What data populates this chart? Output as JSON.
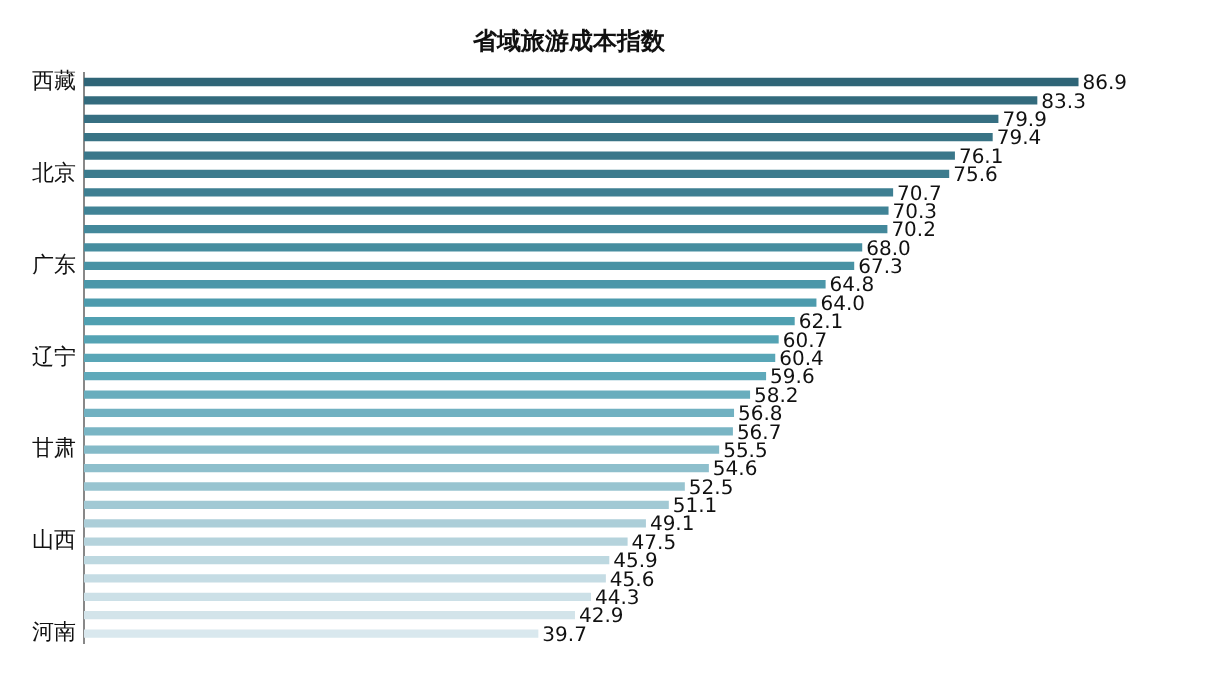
{
  "chart_data": {
    "type": "bar",
    "orientation": "horizontal",
    "title": "省域旅游成本指数",
    "categories": [
      "西藏",
      null,
      null,
      null,
      null,
      "北京",
      null,
      null,
      null,
      null,
      "广东",
      null,
      null,
      null,
      null,
      "辽宁",
      null,
      null,
      null,
      null,
      "甘肃",
      null,
      null,
      null,
      null,
      "山西",
      null,
      null,
      null,
      null,
      "河南"
    ],
    "values": [
      86.9,
      83.3,
      79.9,
      79.4,
      76.1,
      75.6,
      70.7,
      70.3,
      70.2,
      68.0,
      67.3,
      64.8,
      64.0,
      62.1,
      60.7,
      60.4,
      59.6,
      58.2,
      56.8,
      56.7,
      55.5,
      54.6,
      52.5,
      51.1,
      49.1,
      47.5,
      45.9,
      45.6,
      44.3,
      42.9,
      39.7
    ],
    "colors": [
      "#2f6577",
      "#336b7d",
      "#366f82",
      "#387385",
      "#3a778a",
      "#3c7b8d",
      "#3e7f92",
      "#408396",
      "#43889b",
      "#468d9f",
      "#4892a4",
      "#4b97a9",
      "#4d9bad",
      "#50a0b1",
      "#54a3b4",
      "#59a6b7",
      "#5fa9ba",
      "#68adbd",
      "#71b1c1",
      "#7ab5c4",
      "#84bac8",
      "#8ebfcc",
      "#98c4d0",
      "#a2c9d4",
      "#acced8",
      "#b5d3dc",
      "#bdd8e0",
      "#c5dce4",
      "#cce0e7",
      "#d3e4ea",
      "#d9e8ee"
    ],
    "value_labels": [
      "86.9",
      "83.3",
      "79.9",
      "79.4",
      "76.1",
      "75.6",
      "70.7",
      "70.3",
      "70.2",
      "68.0",
      "67.3",
      "64.8",
      "64.0",
      "62.1",
      "60.7",
      "60.4",
      "59.6",
      "58.2",
      "56.8",
      "56.7",
      "55.5",
      "54.6",
      "52.5",
      "51.1",
      "49.1",
      "47.5",
      "45.9",
      "45.6",
      "44.3",
      "42.9",
      "39.7"
    ],
    "grid": false,
    "legend": false
  }
}
